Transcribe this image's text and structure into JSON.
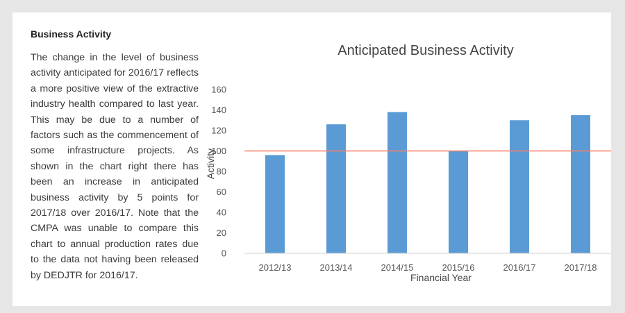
{
  "section": {
    "heading": "Business Activity",
    "body": "The change in the level of business activity anticipated for 2016/17 reflects a more positive view of the extractive industry health compared to last year. This may be due to a number of factors such as the commencement of some infrastructure projects.  As shown in the chart right there has been an increase in anticipated business activity by 5 points for 2017/18 over 2016/17. Note that the CMPA was unable to compare this chart to annual production rates due to the data not having been released by DEDJTR for 2016/17."
  },
  "chart_data": {
    "type": "bar",
    "title": "Anticipated Business Activity",
    "xlabel": "Financial Year",
    "ylabel": "Activity",
    "categories": [
      "2012/13",
      "2013/14",
      "2014/15",
      "2015/16",
      "2016/17",
      "2017/18"
    ],
    "values": [
      96,
      126,
      138,
      100,
      130,
      135
    ],
    "ylim": [
      0,
      160
    ],
    "yticks": [
      0,
      20,
      40,
      60,
      80,
      100,
      120,
      140,
      160
    ],
    "reference_line": 100,
    "grid": false,
    "colors": {
      "bar": "#5b9bd5",
      "reference_line": "#ff7f66",
      "axis_text": "#555555"
    }
  }
}
